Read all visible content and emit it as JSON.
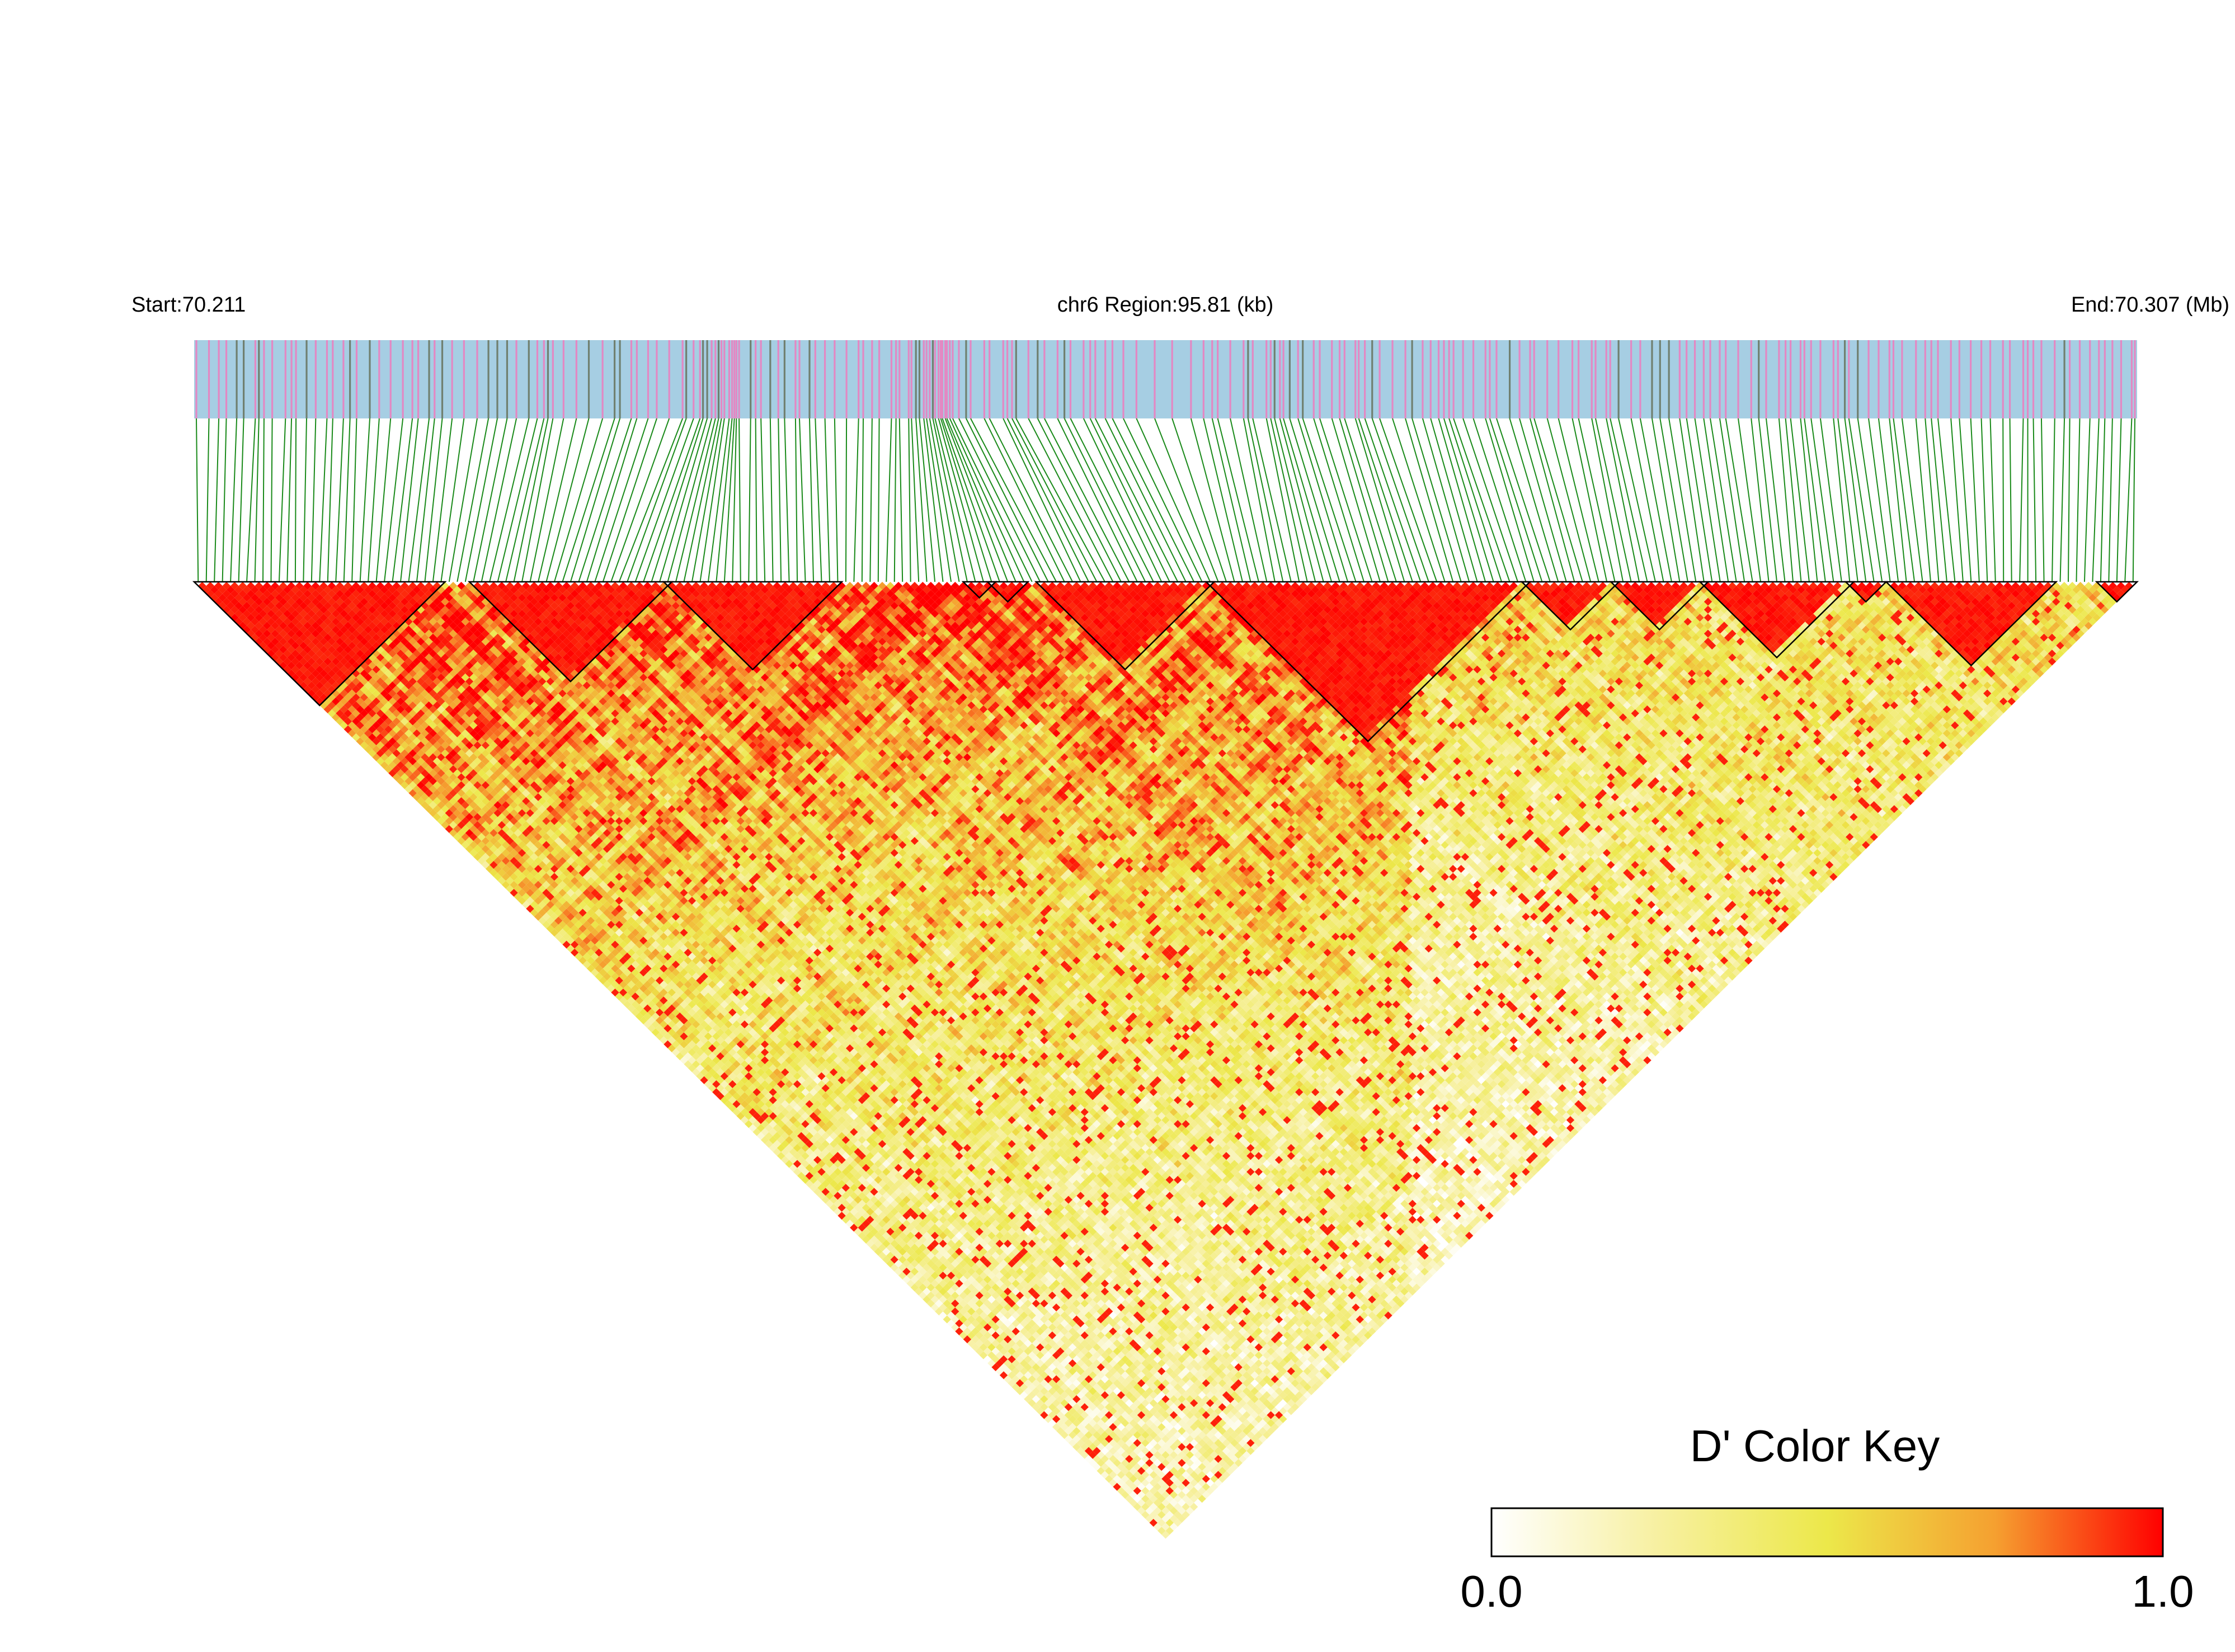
{
  "chart_data": {
    "type": "heatmap",
    "subtype": "linkage-disequilibrium-triangle",
    "header": {
      "start_label": "Start:70.211",
      "region_label": "chr6 Region:95.81 (kb)",
      "end_label": "End:70.307 (Mb)"
    },
    "region": {
      "chromosome": "chr6",
      "start_mb": 70.211,
      "end_mb": 70.307,
      "length_kb": 95.81
    },
    "snp_count": 240,
    "ld_blocks": [
      {
        "start_index": 0,
        "end_index": 30
      },
      {
        "start_index": 34,
        "end_index": 58
      },
      {
        "start_index": 58,
        "end_index": 79
      },
      {
        "start_index": 95,
        "end_index": 98
      },
      {
        "start_index": 98,
        "end_index": 102
      },
      {
        "start_index": 104,
        "end_index": 125
      },
      {
        "start_index": 125,
        "end_index": 164
      },
      {
        "start_index": 164,
        "end_index": 175
      },
      {
        "start_index": 175,
        "end_index": 186
      },
      {
        "start_index": 186,
        "end_index": 204
      },
      {
        "start_index": 204,
        "end_index": 208
      },
      {
        "start_index": 209,
        "end_index": 229
      },
      {
        "start_index": 235,
        "end_index": 239
      }
    ],
    "color_key": {
      "title": "D' Color Key",
      "min_label": "0.0",
      "max_label": "1.0",
      "min": 0.0,
      "max": 1.0,
      "colors": [
        "#ffffff",
        "#f7f0a0",
        "#ece84a",
        "#f5a030",
        "#ff0000"
      ]
    },
    "colors": {
      "gene_track": "#a6cee3",
      "snp_mark_pink": "#e388c3",
      "snp_mark_gray": "#708070",
      "connector": "#1a8a1a",
      "block_outline": "#000000"
    }
  }
}
